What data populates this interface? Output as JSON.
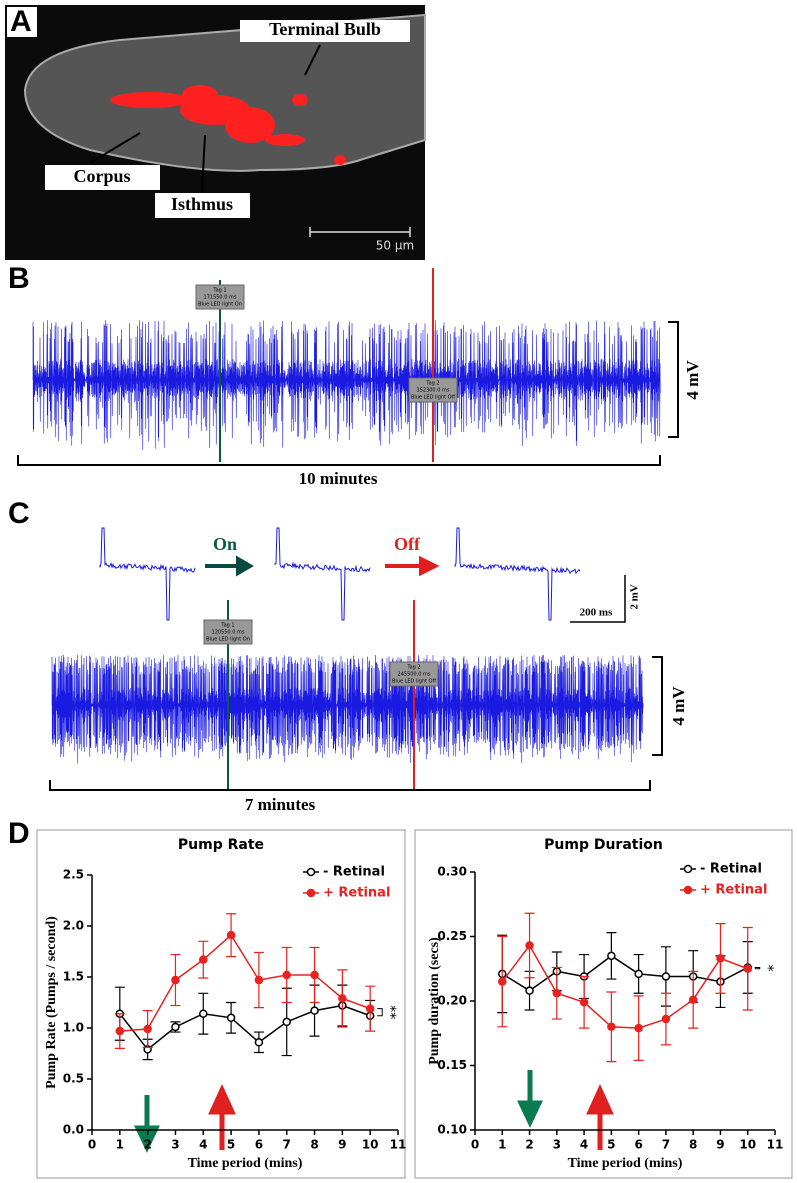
{
  "panels": {
    "a": {
      "label": "A",
      "annotations": [
        "Terminal Bulb",
        "Corpus",
        "Isthmus"
      ],
      "scale_bar": "50 µm"
    },
    "b": {
      "label": "B",
      "tags": [
        {
          "title": "Tag 1",
          "time": "171550.0 ms",
          "note": "Blue LED light On"
        },
        {
          "title": "Tag 2",
          "time": "352300.0 ms",
          "note": "Blue LED light Off"
        }
      ],
      "amplitude": "4 mV",
      "duration": "10 minutes"
    },
    "c": {
      "label": "C",
      "on": "On",
      "off": "Off",
      "scale_time": "200 ms",
      "scale_amp": "2 mV",
      "tags": [
        {
          "title": "Tag 1",
          "time": "120550.0 ms",
          "note": "Blue LED light On"
        },
        {
          "title": "Tag 2",
          "time": "245500.0 ms",
          "note": "Blue LED light Off"
        }
      ],
      "amplitude": "4 mV",
      "duration": "7 minutes"
    },
    "d": {
      "label": "D"
    }
  },
  "chart_data": [
    {
      "type": "line",
      "title": "Pump Rate",
      "x_label": "Time period (mins)",
      "y_label": "Pump Rate (Pumps / second)",
      "x": [
        1,
        2,
        3,
        4,
        5,
        6,
        7,
        8,
        9,
        10
      ],
      "xlim": [
        0,
        11
      ],
      "xticks": [
        0,
        1,
        2,
        3,
        4,
        5,
        6,
        7,
        8,
        9,
        10,
        11
      ],
      "ylim": [
        0,
        2.5
      ],
      "yticks": [
        {
          "value": 0,
          "label": "0.0"
        },
        {
          "value": 0.5,
          "label": "0.5"
        },
        {
          "value": 1,
          "label": "1.0"
        },
        {
          "value": 1.5,
          "label": "1.5"
        },
        {
          "value": 2,
          "label": "2.0"
        },
        {
          "value": 2.5,
          "label": "2.5"
        }
      ],
      "legend": "upper right",
      "significance": "**",
      "series": [
        {
          "name": "- Retinal",
          "color": "#000000",
          "marker": "open",
          "values": [
            1.14,
            0.79,
            1.01,
            1.14,
            1.1,
            0.86,
            1.06,
            1.17,
            1.22,
            1.12
          ],
          "errors": [
            0.26,
            0.1,
            0.05,
            0.2,
            0.15,
            0.1,
            0.33,
            0.25,
            0.2,
            0.15
          ]
        },
        {
          "name": "+ Retinal",
          "color": "#e8221f",
          "marker": "filled",
          "values": [
            0.97,
            0.99,
            1.47,
            1.67,
            1.91,
            1.47,
            1.52,
            1.52,
            1.29,
            1.19
          ],
          "errors": [
            0.17,
            0.18,
            0.25,
            0.18,
            0.21,
            0.27,
            0.27,
            0.27,
            0.28,
            0.22
          ]
        }
      ]
    },
    {
      "type": "line",
      "title": "Pump Duration",
      "x_label": "Time period (mins)",
      "y_label": "Pump duration (secs)",
      "x": [
        1,
        2,
        3,
        4,
        5,
        6,
        7,
        8,
        9,
        10
      ],
      "xlim": [
        0,
        11
      ],
      "xticks": [
        0,
        1,
        2,
        3,
        4,
        5,
        6,
        7,
        8,
        9,
        10,
        11
      ],
      "ylim": [
        0.1,
        0.3
      ],
      "yticks": [
        {
          "value": 0.1,
          "label": "0.10"
        },
        {
          "value": 0.15,
          "label": "0.15"
        },
        {
          "value": 0.2,
          "label": "0.20"
        },
        {
          "value": 0.25,
          "label": "0.25"
        },
        {
          "value": 0.3,
          "label": "0.30"
        }
      ],
      "legend": "upper right",
      "significance": "*",
      "series": [
        {
          "name": "- Retinal",
          "color": "#000000",
          "marker": "open",
          "values": [
            0.221,
            0.208,
            0.223,
            0.219,
            0.235,
            0.221,
            0.219,
            0.219,
            0.215,
            0.226
          ],
          "errors": [
            0.03,
            0.015,
            0.015,
            0.017,
            0.018,
            0.015,
            0.023,
            0.02,
            0.02,
            0.02
          ]
        },
        {
          "name": "+ Retinal",
          "color": "#e8221f",
          "marker": "filled",
          "values": [
            0.215,
            0.243,
            0.206,
            0.199,
            0.18,
            0.179,
            0.186,
            0.201,
            0.233,
            0.225
          ],
          "errors": [
            0.035,
            0.025,
            0.02,
            0.02,
            0.027,
            0.025,
            0.02,
            0.022,
            0.027,
            0.032
          ]
        }
      ]
    }
  ]
}
